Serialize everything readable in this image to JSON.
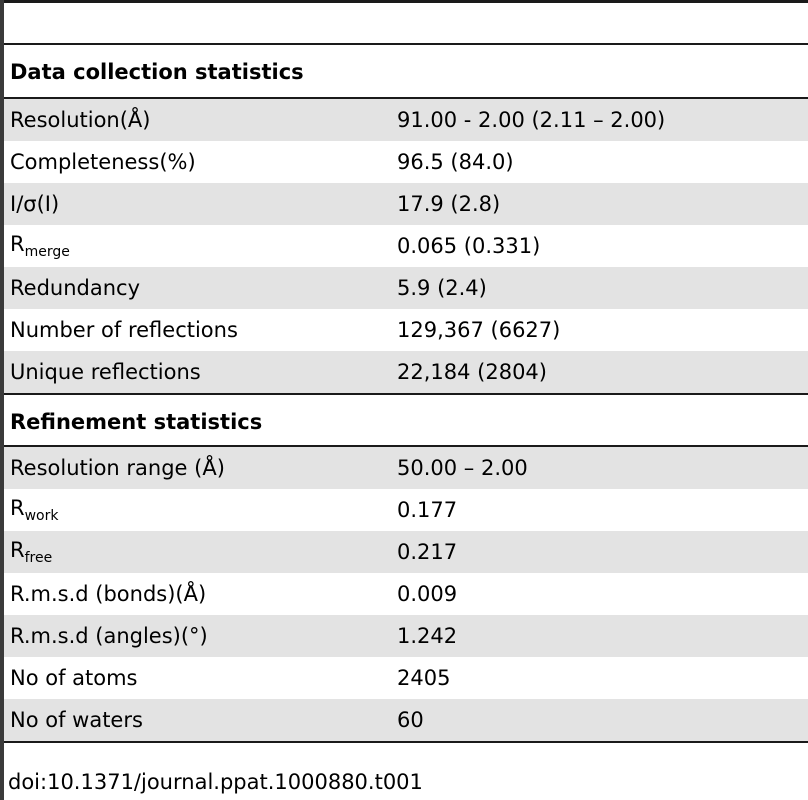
{
  "sections": [
    {
      "title": "Data collection statistics",
      "rows": [
        {
          "label": "Resolution(Å)",
          "sub": "",
          "value": "91.00 - 2.00 (2.11 – 2.00)"
        },
        {
          "label": "Completeness(%)",
          "sub": "",
          "value": "96.5 (84.0)"
        },
        {
          "label": "I/σ(I)",
          "sub": "",
          "value": "17.9 (2.8)"
        },
        {
          "label": "R",
          "sub": "merge",
          "value": "0.065 (0.331)"
        },
        {
          "label": "Redundancy",
          "sub": "",
          "value": "5.9 (2.4)"
        },
        {
          "label": "Number of reflections",
          "sub": "",
          "value": "129,367 (6627)"
        },
        {
          "label": "Unique reflections",
          "sub": "",
          "value": "22,184 (2804)"
        }
      ]
    },
    {
      "title": "Refinement statistics",
      "rows": [
        {
          "label": "Resolution range (Å)",
          "sub": "",
          "value": "50.00 – 2.00"
        },
        {
          "label": "R",
          "sub": "work",
          "value": "0.177"
        },
        {
          "label": "R",
          "sub": "free",
          "value": "0.217"
        },
        {
          "label": "R.m.s.d (bonds)(Å)",
          "sub": "",
          "value": "0.009"
        },
        {
          "label": "R.m.s.d (angles)(°)",
          "sub": "",
          "value": "1.242"
        },
        {
          "label": "No of atoms",
          "sub": "",
          "value": "2405"
        },
        {
          "label": "No of waters",
          "sub": "",
          "value": "60"
        }
      ]
    }
  ],
  "doi": "doi:10.1371/journal.ppat.1000880.t001"
}
